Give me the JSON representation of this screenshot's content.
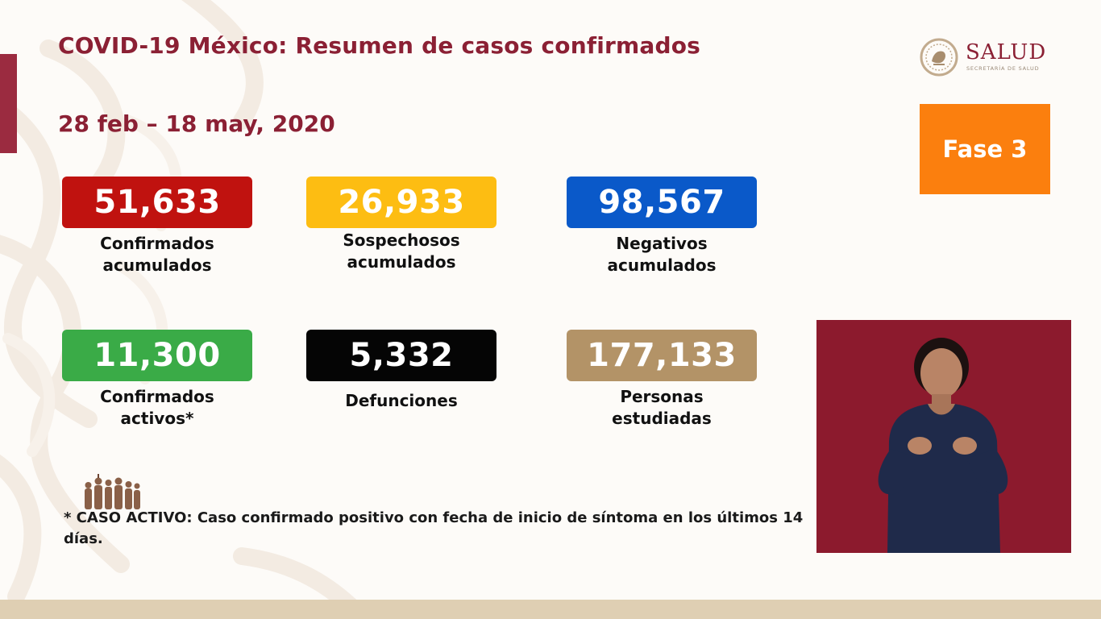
{
  "header": {
    "title": "COVID-19 México: Resumen de casos confirmados",
    "date_range": "28 feb – 18 may, 2020"
  },
  "logo": {
    "name": "SALUD",
    "subtitle": "SECRETARÍA DE SALUD"
  },
  "phase": {
    "label": "Fase 3",
    "color": "#fb7f0e"
  },
  "metrics": [
    {
      "value": "51,633",
      "label_lines": [
        "Confirmados",
        "acumulados"
      ],
      "color": "#c0120f"
    },
    {
      "value": "26,933",
      "label_lines": [
        "Sospechosos",
        "acumulados"
      ],
      "color": "#fdbd12"
    },
    {
      "value": "98,567",
      "label_lines": [
        "Negativos",
        "acumulados"
      ],
      "color": "#0a59c9"
    },
    {
      "value": "11,300",
      "label_lines": [
        "Confirmados",
        "activos*"
      ],
      "color": "#3aab47"
    },
    {
      "value": "5,332",
      "label_lines": [
        "Defunciones"
      ],
      "color": "#050505"
    },
    {
      "value": "177,133",
      "label_lines": [
        "Personas",
        "estudiadas"
      ],
      "color": "#b39367"
    }
  ],
  "footnote": "* CASO ACTIVO: Caso confirmado positivo con fecha de inicio de síntoma en los últimos 14 días.",
  "colors": {
    "brand": "#8b2034",
    "interpreter_background": "#8c1a2d",
    "bottom_bar": "#dfcfb3"
  }
}
